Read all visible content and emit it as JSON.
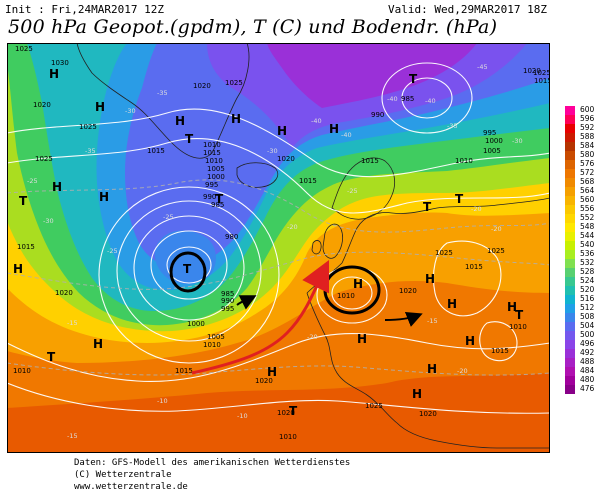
{
  "header": {
    "init": "Init : Fri,24MAR2017 12Z",
    "valid": "Valid: Wed,29MAR2017 18Z",
    "title": "500 hPa Geopot.(gpdm), T (C) und Bodendr. (hPa)"
  },
  "colorbar": {
    "values": [
      "600",
      "596",
      "592",
      "588",
      "584",
      "580",
      "576",
      "572",
      "568",
      "564",
      "560",
      "556",
      "552",
      "548",
      "544",
      "540",
      "536",
      "532",
      "528",
      "524",
      "520",
      "516",
      "512",
      "508",
      "504",
      "500",
      "496",
      "492",
      "488",
      "484",
      "480",
      "476"
    ],
    "colors": [
      "#ff0099",
      "#ff0055",
      "#e80000",
      "#cc1a00",
      "#b53300",
      "#c84a00",
      "#dd6400",
      "#ee7700",
      "#f08a00",
      "#f5a000",
      "#f8b400",
      "#fbc800",
      "#ffd700",
      "#ffe800",
      "#e8f000",
      "#c8f000",
      "#a8ee20",
      "#80e050",
      "#58d070",
      "#38c890",
      "#20c0b0",
      "#10b4d0",
      "#20a0e8",
      "#3a86ec",
      "#5a6cf0",
      "#7458ee",
      "#8a44e8",
      "#9a30d8",
      "#a820c4",
      "#b010b0",
      "#a0009c",
      "#880088"
    ]
  },
  "map": {
    "highs": [
      "H",
      "H",
      "H",
      "H",
      "H",
      "H",
      "H",
      "H",
      "H",
      "H",
      "H",
      "H",
      "H",
      "H",
      "H",
      "H",
      "H",
      "H",
      "H"
    ],
    "lows": [
      "T",
      "T",
      "T",
      "T",
      "T",
      "T",
      "T",
      "T",
      "T",
      "T"
    ],
    "pressure_labels": [
      "1025",
      "1030",
      "1020",
      "1025",
      "1015",
      "1025",
      "1020",
      "1025",
      "1010",
      "1020",
      "1015",
      "1010",
      "1005",
      "1000",
      "995",
      "990",
      "985",
      "980",
      "985",
      "990",
      "995",
      "1000",
      "1005",
      "1010",
      "1015",
      "1015",
      "1020",
      "1015",
      "1010",
      "985",
      "990",
      "995",
      "1000",
      "1005",
      "1010",
      "1015",
      "1020",
      "1025",
      "1015",
      "1020",
      "1025",
      "1025",
      "1010",
      "1015",
      "1020",
      "1025",
      "1010",
      "1020",
      "1015",
      "1020",
      "1010"
    ],
    "temp_labels": [
      "-25",
      "-30",
      "-35",
      "-40",
      "-45",
      "-40",
      "-35",
      "-30",
      "-25",
      "-20",
      "-15",
      "-10",
      "-25",
      "-20",
      "-30",
      "-35",
      "-40",
      "-40",
      "-30",
      "-25",
      "-20",
      "-15",
      "-10",
      "-20",
      "-20",
      "-15"
    ]
  },
  "footer": {
    "line1": "Daten: GFS-Modell des amerikanischen Wetterdienstes",
    "line2": "(C) Wetterzentrale",
    "line3": "www.wetterzentrale.de"
  }
}
